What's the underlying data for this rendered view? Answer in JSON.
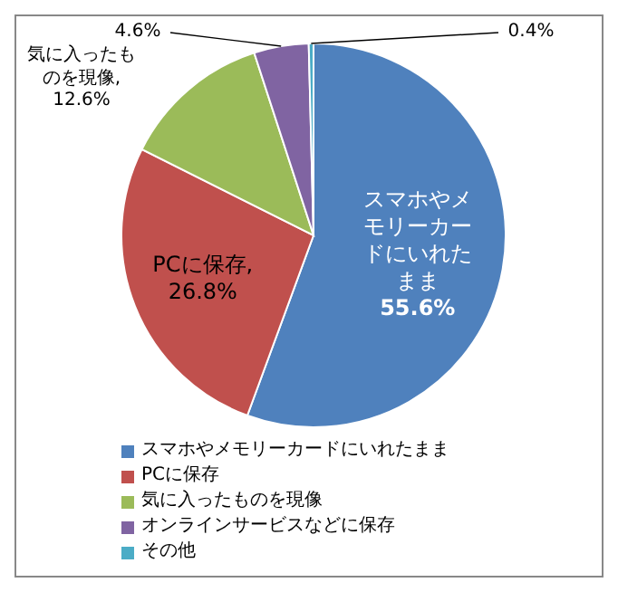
{
  "chart_data": {
    "type": "pie",
    "categories": [
      "スマホやメモリーカードにいれたまま",
      "PCに保存",
      "気に入ったものを現像",
      "オンラインサービスなどに保存",
      "その他"
    ],
    "values": [
      55.6,
      26.8,
      12.6,
      4.6,
      0.4
    ],
    "colors": [
      "#4f81bd",
      "#c0504d",
      "#9bbb59",
      "#8064a2",
      "#4bacc6"
    ],
    "value_labels": [
      "スマホやメモリーカードにいれたまま\n55.6%",
      "PCに保存,\n26.8%",
      "気に入ったものを現像,\n12.6%",
      "4.6%",
      "0.4%"
    ],
    "legend": "bottom"
  }
}
